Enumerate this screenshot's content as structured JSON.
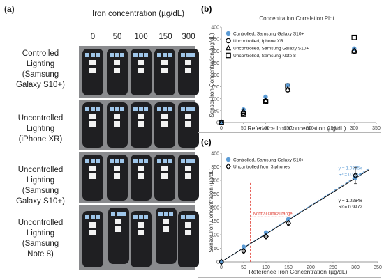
{
  "panel_a": {
    "label": "(a)",
    "title": "Iron concentration (µg/dL)",
    "concentrations": [
      "0",
      "50",
      "100",
      "150",
      "300"
    ],
    "rows": [
      {
        "lines": [
          "Controlled",
          "Lighting",
          "(Samsung",
          "Galaxy S10+)"
        ]
      },
      {
        "lines": [
          "Uncontrolled",
          "Lighting",
          "(iPhone XR)"
        ]
      },
      {
        "lines": [
          "Uncontrolled",
          "Lighting",
          "(Samsung",
          "Galaxy S10+)"
        ]
      },
      {
        "lines": [
          "Uncontrolled",
          "Lighting",
          "(Samsung",
          "Note 8)"
        ]
      }
    ],
    "colors": {
      "strip": "#1f1f22",
      "background": "#8a8b8e",
      "pad_blue": "#9fc6ea",
      "pad_white": "#f2f2f2"
    }
  },
  "chart_data": [
    {
      "panel_label": "(b)",
      "type": "scatter",
      "title": "Concentration Correlation Plot",
      "xlabel": "Reference Iron Concentration (µg/dL)",
      "ylabel": "Sensor Iron Concentration (µg/dL)",
      "xlim": [
        0,
        350
      ],
      "ylim": [
        0,
        400
      ],
      "xticks": [
        0,
        50,
        100,
        150,
        200,
        250,
        300,
        350
      ],
      "yticks": [
        0,
        50,
        100,
        150,
        200,
        250,
        300,
        350,
        400
      ],
      "grid": false,
      "legend": "top-left",
      "series": [
        {
          "name": "Controlled, Samsung Galaxy S10+",
          "marker": "circle-filled",
          "color": "#5b9bd5",
          "x": [
            0,
            50,
            100,
            150,
            300
          ],
          "y": [
            0,
            55,
            108,
            157,
            310
          ]
        },
        {
          "name": "Uncontrolled, Iphone XR",
          "marker": "circle-open",
          "color": "#000000",
          "x": [
            0,
            50,
            100,
            150,
            300
          ],
          "y": [
            0,
            40,
            90,
            137,
            298
          ]
        },
        {
          "name": "Uncontrolled, Samsung Galaxy S10+",
          "marker": "triangle-open",
          "color": "#000000",
          "x": [
            0,
            50,
            100,
            150,
            300
          ],
          "y": [
            0,
            47,
            92,
            140,
            300
          ]
        },
        {
          "name": "Uncontrolled, Samsung Note 8",
          "marker": "square-open",
          "color": "#000000",
          "x": [
            0,
            50,
            100,
            150,
            300
          ],
          "y": [
            0,
            35,
            88,
            153,
            357
          ]
        }
      ]
    },
    {
      "panel_label": "(c)",
      "type": "scatter",
      "title": "",
      "xlabel": "Reference Iron Concentration (µg/dL)",
      "ylabel": "Sensor Iron Concentration (µg/dL)",
      "xlim": [
        0,
        350
      ],
      "ylim": [
        0,
        400
      ],
      "xticks": [
        0,
        50,
        100,
        150,
        200,
        250,
        300,
        350
      ],
      "yticks": [
        0,
        50,
        100,
        150,
        200,
        250,
        300,
        350,
        400
      ],
      "grid": false,
      "legend": "top-left",
      "series": [
        {
          "name": "Controlled, Samsung Galaxy S10+",
          "marker": "circle-filled",
          "color": "#5b9bd5",
          "x": [
            0,
            50,
            100,
            150,
            300
          ],
          "y": [
            0,
            55,
            108,
            157,
            310
          ],
          "trendline": {
            "slope": 1.0395,
            "style": "dashed",
            "color": "#5b9bd5"
          }
        },
        {
          "name": "Uncontrolled from 3 phones",
          "marker": "diamond-open",
          "color": "#000000",
          "x": [
            0,
            50,
            100,
            150,
            300
          ],
          "y": [
            0,
            40,
            94,
            143,
            318
          ],
          "error": [
            0,
            6,
            6,
            8,
            30
          ],
          "trendline": {
            "slope": 1.0264,
            "style": "solid",
            "color": "#000000"
          }
        }
      ],
      "annotations": [
        {
          "text_lines": [
            "y = 1.0395x",
            "R² = 0.9996"
          ],
          "color": "#5b9bd5"
        },
        {
          "text_lines": [
            "y = 1.0264x",
            "R² = 0.9972"
          ],
          "color": "#000000"
        },
        {
          "text": "Normal clinical range",
          "color": "#e03c31",
          "x_range": [
            65,
            165
          ]
        }
      ]
    }
  ]
}
